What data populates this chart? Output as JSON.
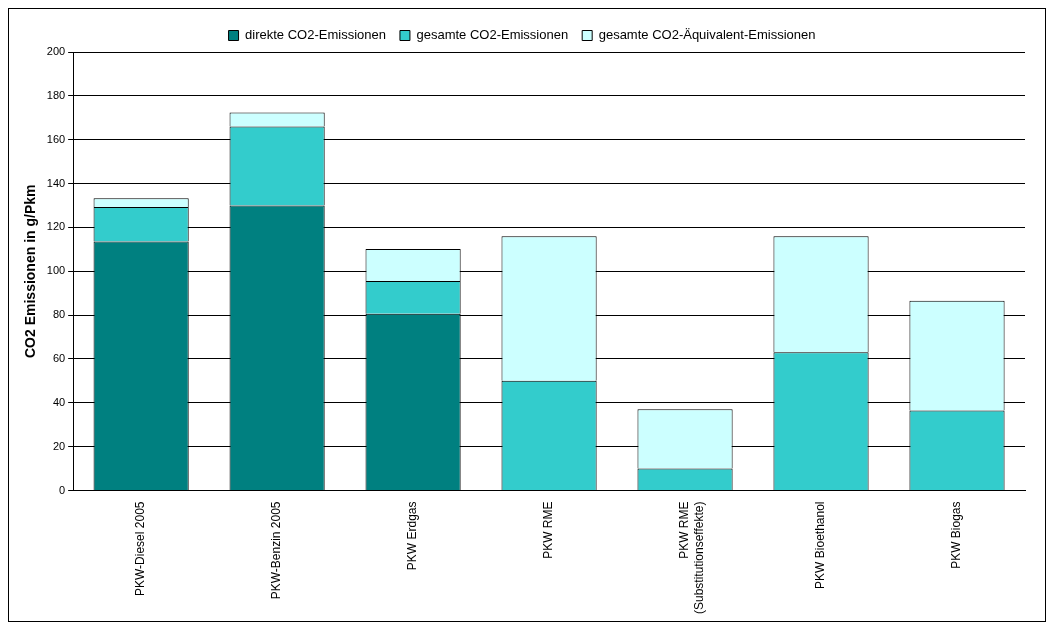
{
  "chart_data": {
    "type": "bar",
    "stacked": true,
    "ylabel": "CO2 Emissionen in g/Pkm",
    "categories": [
      "PKW-Diesel 2005",
      "PKW-Benzin 2005",
      "PKW Erdgas",
      "PKW RME",
      "PKW RME\n(Substitutionseffekte)",
      "PKW Bioethanol",
      "PKW Biogas"
    ],
    "series": [
      {
        "name": "direkte CO2-Emissionen",
        "color": "#008080",
        "values": [
          113.6,
          130,
          80.6,
          0,
          0,
          0,
          0
        ]
      },
      {
        "name": "gesamte CO2-Emissionen",
        "color": "#33cccc",
        "values": [
          15.7,
          36,
          15,
          50,
          10,
          63,
          36.5
        ]
      },
      {
        "name": "gesamte CO2-Äquivalent-Emissionen",
        "color": "#ccffff",
        "values": [
          4,
          6.4,
          14.5,
          66,
          27,
          53,
          50
        ]
      }
    ],
    "ylim": [
      0,
      200
    ],
    "yticks": [
      0,
      20,
      40,
      60,
      80,
      100,
      120,
      140,
      160,
      180,
      200
    ],
    "grid": "y",
    "legend": "top"
  }
}
